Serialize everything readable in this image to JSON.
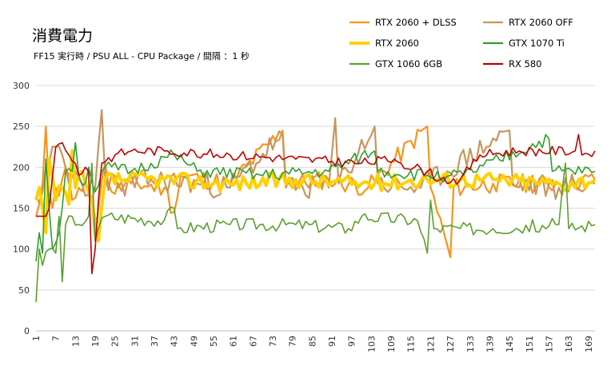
{
  "chart_data": {
    "type": "line",
    "title": "消費電力",
    "subtitle": "FF15 実行時 / PSU ALL - CPU Package / 間隔 ：1 秒",
    "xlabel": "",
    "ylabel": "",
    "ylim": [
      0,
      300
    ],
    "yticks": [
      0,
      50,
      100,
      150,
      200,
      250,
      300
    ],
    "xlim": [
      1,
      171
    ],
    "xticks": [
      1,
      7,
      13,
      19,
      25,
      31,
      37,
      43,
      49,
      55,
      61,
      67,
      73,
      79,
      85,
      91,
      97,
      103,
      109,
      115,
      121,
      127,
      133,
      139,
      145,
      151,
      157,
      163,
      169
    ],
    "grid": "horizontal",
    "legend_position": "top-right",
    "series": [
      {
        "name": "RTX 2060 + DLSS",
        "color": "#f7941d",
        "width": 2.2,
        "keypoints": [
          [
            1,
            140
          ],
          [
            2,
            155
          ],
          [
            3,
            180
          ],
          [
            4,
            250
          ],
          [
            5,
            170
          ],
          [
            6,
            150
          ],
          [
            7,
            175
          ],
          [
            8,
            165
          ],
          [
            10,
            200
          ],
          [
            12,
            160
          ],
          [
            14,
            175
          ],
          [
            16,
            185
          ],
          [
            18,
            160
          ],
          [
            19,
            110
          ],
          [
            20,
            150
          ],
          [
            22,
            205
          ],
          [
            24,
            170
          ],
          [
            30,
            180
          ],
          [
            40,
            175
          ],
          [
            43,
            145
          ],
          [
            45,
            190
          ],
          [
            60,
            180
          ],
          [
            76,
            245
          ],
          [
            77,
            180
          ],
          [
            90,
            185
          ],
          [
            102,
            175
          ],
          [
            120,
            250
          ],
          [
            121,
            175
          ],
          [
            127,
            90
          ],
          [
            128,
            175
          ],
          [
            140,
            180
          ],
          [
            160,
            180
          ],
          [
            171,
            185
          ]
        ],
        "base": 180,
        "amp": 12,
        "seed": 11
      },
      {
        "name": "RTX 2060 OFF",
        "color": "#c8955c",
        "width": 2.2,
        "keypoints": [
          [
            1,
            165
          ],
          [
            3,
            170
          ],
          [
            5,
            205
          ],
          [
            7,
            225
          ],
          [
            9,
            215
          ],
          [
            11,
            180
          ],
          [
            13,
            195
          ],
          [
            16,
            165
          ],
          [
            19,
            175
          ],
          [
            21,
            270
          ],
          [
            22,
            190
          ],
          [
            26,
            175
          ],
          [
            36,
            185
          ],
          [
            50,
            180
          ],
          [
            60,
            175
          ],
          [
            76,
            240
          ],
          [
            77,
            175
          ],
          [
            90,
            175
          ],
          [
            92,
            260
          ],
          [
            93,
            180
          ],
          [
            104,
            250
          ],
          [
            105,
            180
          ],
          [
            118,
            175
          ],
          [
            145,
            245
          ],
          [
            146,
            180
          ],
          [
            160,
            175
          ],
          [
            171,
            180
          ]
        ],
        "base": 180,
        "amp": 15,
        "seed": 23
      },
      {
        "name": "RTX 2060",
        "color": "#ffd000",
        "width": 4,
        "keypoints": [
          [
            1,
            160
          ],
          [
            2,
            175
          ],
          [
            4,
            120
          ],
          [
            5,
            210
          ],
          [
            7,
            160
          ],
          [
            9,
            175
          ],
          [
            11,
            155
          ],
          [
            12,
            220
          ],
          [
            13,
            175
          ],
          [
            15,
            195
          ],
          [
            17,
            170
          ],
          [
            20,
            110
          ],
          [
            22,
            185
          ],
          [
            40,
            185
          ],
          [
            60,
            180
          ],
          [
            80,
            185
          ],
          [
            100,
            180
          ],
          [
            120,
            185
          ],
          [
            140,
            185
          ],
          [
            160,
            180
          ],
          [
            171,
            185
          ]
        ],
        "base": 183,
        "amp": 10,
        "seed": 37
      },
      {
        "name": "GTX 1070 Ti",
        "color": "#2e9e2e",
        "width": 1.6,
        "keypoints": [
          [
            1,
            85
          ],
          [
            2,
            120
          ],
          [
            3,
            95
          ],
          [
            4,
            210
          ],
          [
            6,
            100
          ],
          [
            8,
            120
          ],
          [
            10,
            195
          ],
          [
            12,
            195
          ],
          [
            13,
            230
          ],
          [
            14,
            190
          ],
          [
            16,
            180
          ],
          [
            17,
            200
          ],
          [
            19,
            170
          ],
          [
            22,
            200
          ],
          [
            30,
            195
          ],
          [
            43,
            215
          ],
          [
            50,
            195
          ],
          [
            70,
            190
          ],
          [
            90,
            195
          ],
          [
            104,
            220
          ],
          [
            105,
            195
          ],
          [
            120,
            190
          ],
          [
            127,
            190
          ],
          [
            131,
            190
          ],
          [
            157,
            235
          ],
          [
            158,
            195
          ],
          [
            171,
            195
          ]
        ],
        "base": 192,
        "amp": 8,
        "seed": 51
      },
      {
        "name": "GTX 1060 6GB",
        "color": "#5aa02c",
        "width": 1.6,
        "keypoints": [
          [
            1,
            35
          ],
          [
            2,
            100
          ],
          [
            3,
            80
          ],
          [
            5,
            100
          ],
          [
            7,
            95
          ],
          [
            8,
            140
          ],
          [
            9,
            60
          ],
          [
            10,
            130
          ],
          [
            12,
            140
          ],
          [
            14,
            130
          ],
          [
            17,
            140
          ],
          [
            18,
            205
          ],
          [
            19,
            110
          ],
          [
            20,
            125
          ],
          [
            22,
            140
          ],
          [
            40,
            135
          ],
          [
            43,
            150
          ],
          [
            44,
            125
          ],
          [
            60,
            130
          ],
          [
            80,
            130
          ],
          [
            96,
            125
          ],
          [
            100,
            140
          ],
          [
            117,
            135
          ],
          [
            120,
            95
          ],
          [
            121,
            160
          ],
          [
            122,
            125
          ],
          [
            140,
            125
          ],
          [
            160,
            130
          ],
          [
            162,
            205
          ],
          [
            163,
            125
          ],
          [
            171,
            130
          ]
        ],
        "base": 132,
        "amp": 8,
        "seed": 67
      },
      {
        "name": "RX 580",
        "color": "#c00000",
        "width": 1.6,
        "keypoints": [
          [
            1,
            140
          ],
          [
            3,
            140
          ],
          [
            5,
            150
          ],
          [
            7,
            225
          ],
          [
            9,
            230
          ],
          [
            11,
            215
          ],
          [
            13,
            205
          ],
          [
            14,
            190
          ],
          [
            16,
            200
          ],
          [
            17,
            195
          ],
          [
            18,
            70
          ],
          [
            19,
            100
          ],
          [
            20,
            160
          ],
          [
            21,
            205
          ],
          [
            25,
            215
          ],
          [
            30,
            220
          ],
          [
            40,
            220
          ],
          [
            60,
            215
          ],
          [
            80,
            210
          ],
          [
            100,
            205
          ],
          [
            110,
            210
          ],
          [
            112,
            205
          ],
          [
            120,
            195
          ],
          [
            124,
            185
          ],
          [
            130,
            185
          ],
          [
            136,
            215
          ],
          [
            148,
            220
          ],
          [
            165,
            220
          ],
          [
            166,
            240
          ],
          [
            167,
            215
          ],
          [
            171,
            220
          ]
        ],
        "base": 212,
        "amp": 6,
        "seed": 83
      }
    ]
  }
}
